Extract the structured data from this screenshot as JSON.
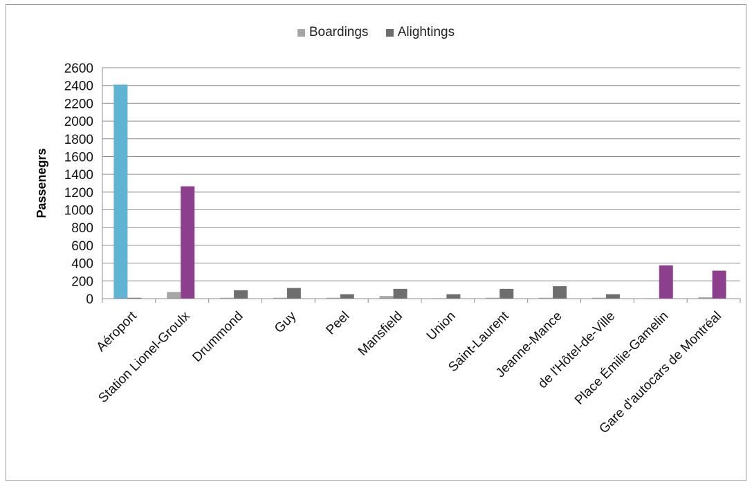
{
  "chart_data": {
    "type": "bar",
    "ylabel": "Passenegrs",
    "ylim": [
      0,
      2600
    ],
    "yticks": [
      0,
      200,
      400,
      600,
      800,
      1000,
      1200,
      1400,
      1600,
      1800,
      2000,
      2200,
      2400,
      2600
    ],
    "grid": true,
    "legend_position": "top-center",
    "categories": [
      "Aéroport",
      "Station Lionel-Groulx",
      "Drummond",
      "Guy",
      "Peel",
      "Mansfield",
      "Union",
      "Saint-Laurent",
      "Jeanne-Mance",
      "de l'Hôtel-de-Ville",
      "Place Émilie-Gamelin",
      "Gare d'autocars de Montréal"
    ],
    "series": [
      {
        "name": "Boardings",
        "color": "#a6a6a6",
        "values": [
          2410,
          75,
          10,
          10,
          10,
          30,
          5,
          10,
          10,
          10,
          5,
          15
        ]
      },
      {
        "name": "Alightings",
        "color": "#6e6e6e",
        "values": [
          10,
          1265,
          95,
          120,
          50,
          110,
          50,
          110,
          140,
          50,
          375,
          315
        ]
      }
    ],
    "highlight_colors": {
      "Boardings": {
        "Aéroport": "#5fb3d3"
      },
      "Alightings": {
        "Station Lionel-Groulx": "#8c3f8c",
        "Place Émilie-Gamelin": "#8c3f8c",
        "Gare d'autocars de Montréal": "#8c3f8c"
      }
    }
  }
}
